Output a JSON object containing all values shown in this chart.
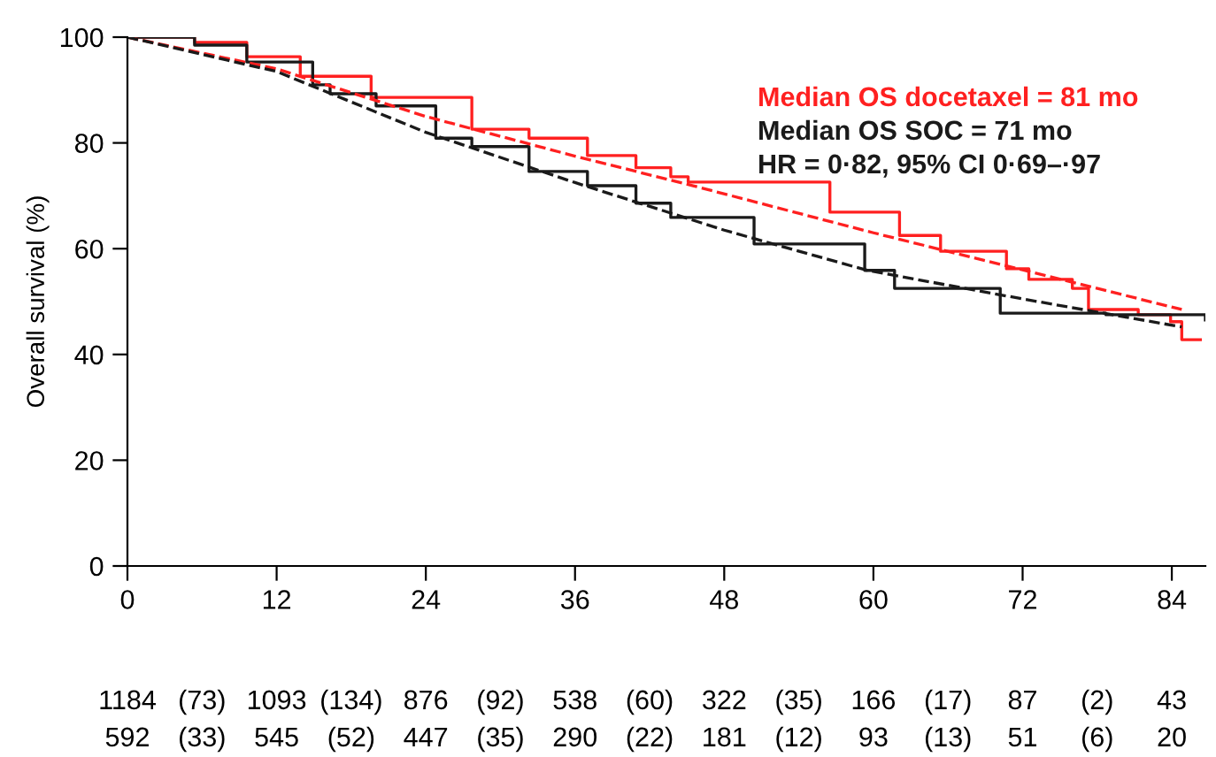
{
  "chart_data": {
    "type": "step",
    "ylabel": "Overall survival (%)",
    "xlim": [
      0,
      86.7
    ],
    "ylim": [
      0,
      100
    ],
    "xticks": [
      0,
      12,
      24,
      36,
      48,
      60,
      72,
      84
    ],
    "yticks": [
      0,
      20,
      40,
      60,
      80,
      100
    ],
    "grid": false,
    "legend": false,
    "series": [
      {
        "color": "#ff2020",
        "line_style": "solid",
        "x": [
          0,
          5.4,
          9.6,
          13.9,
          19.6,
          27.7,
          32.3,
          37,
          40.9,
          43.7,
          45.1,
          56.5,
          62.1,
          65.4,
          70.7,
          72.5,
          76,
          77.3,
          81.3,
          83.9,
          84.8,
          86.3
        ],
        "values": [
          100,
          99,
          96.3,
          92.6,
          88.6,
          82.6,
          80.9,
          77.6,
          75.3,
          73.6,
          72.6,
          66.9,
          62.5,
          59.5,
          56.2,
          54.2,
          52.5,
          48.5,
          47.5,
          46.2,
          42.8,
          42.8
        ]
      },
      {
        "color": "#1a1a1a",
        "line_style": "solid",
        "x": [
          0,
          5.4,
          9.6,
          14.9,
          16.3,
          20,
          24.8,
          27.7,
          32.3,
          37,
          40.9,
          43.7,
          50.4,
          59.3,
          61.7,
          70.2,
          78.7,
          86.7
        ],
        "values": [
          100,
          98.5,
          95.3,
          91,
          89.3,
          87,
          80.9,
          79.3,
          74.6,
          71.9,
          68.6,
          65.9,
          60.9,
          55.9,
          52.5,
          47.8,
          47.5,
          46.5
        ]
      },
      {
        "type": "line",
        "color": "#ff2020",
        "line_style": "dashed",
        "x": [
          0,
          12,
          24,
          36,
          45.5,
          60,
          72,
          84.8
        ],
        "values": [
          100,
          94,
          85,
          77.5,
          71.9,
          63,
          56,
          48.5
        ]
      },
      {
        "type": "line",
        "color": "#1a1a1a",
        "line_style": "dashed",
        "x": [
          0,
          12,
          24,
          36,
          48,
          59.5,
          72,
          84.8
        ],
        "values": [
          100,
          93.5,
          82,
          72.5,
          63.5,
          55.9,
          50.5,
          45.2
        ]
      }
    ],
    "annotations": [
      "Median OS docetaxel = 81 mo",
      "Median OS SOC = 71 mo",
      "HR = 0·82, 95% CI 0·69–·97",
      "1184",
      "(73)",
      "1093",
      "(134)",
      "876",
      "(92)",
      "538",
      "(60)",
      "322",
      "(35)",
      "166",
      "(17)",
      "87",
      "(2)",
      "43",
      "592",
      "(33)",
      "545",
      "(52)",
      "447",
      "(35)",
      "290",
      "(22)",
      "181",
      "(12)",
      "93",
      "(13)",
      "51",
      "(6)",
      "20"
    ]
  }
}
